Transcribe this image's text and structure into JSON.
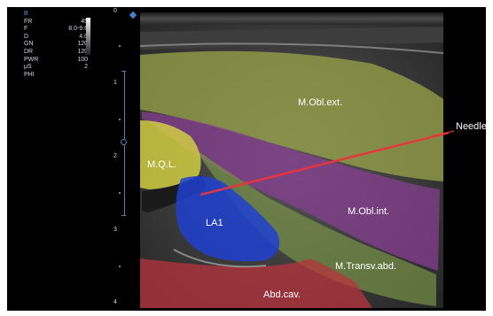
{
  "params": {
    "header": "B",
    "rows": [
      {
        "key": "FR",
        "value": "45"
      },
      {
        "key": "F",
        "value": "8.0-9.6"
      },
      {
        "key": "D",
        "value": "4.0"
      },
      {
        "key": "GN",
        "value": "120"
      },
      {
        "key": "DR",
        "value": "120"
      },
      {
        "key": "PWR",
        "value": "100"
      },
      {
        "key": "μS",
        "value": "2"
      },
      {
        "key": "PHI",
        "value": ""
      }
    ]
  },
  "depth_scale": [
    "0",
    "1",
    "2",
    "3",
    "4"
  ],
  "labels": {
    "obl_ext": "M.Obl.ext.",
    "needle": "Needle",
    "ql": "M.Q.L.",
    "la1": "LA1",
    "obl_int": "M.Obl.int.",
    "transv_abd": "M.Transv.abd.",
    "abd_cav": "Abd.cav."
  },
  "colors": {
    "obl_ext": "#9aa64a",
    "ql": "#d8d640",
    "obl_int": "#8a3f95",
    "transv_abd": "#7d9a48",
    "abd_cav": "#b8343e",
    "la1": "#1f3fd0",
    "needle": "#e8343a"
  }
}
